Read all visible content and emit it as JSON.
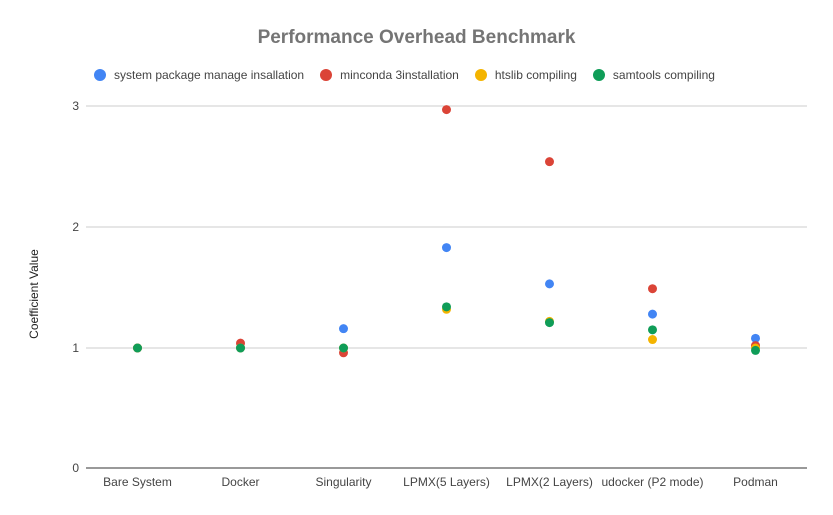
{
  "chart_data": {
    "type": "scatter",
    "title": "Performance Overhead Benchmark",
    "xlabel": "",
    "ylabel": "Coefficient Value",
    "categories": [
      "Bare System",
      "Docker",
      "Singularity",
      "LPMX(5 Layers)",
      "LPMX(2 Layers)",
      "udocker (P2 mode)",
      "Podman"
    ],
    "y_ticks": [
      "0",
      "1",
      "2",
      "3"
    ],
    "ylim": [
      0,
      3.2
    ],
    "y_scale": "nonlinear (0 to 1 compressed)",
    "grid": true,
    "legend_position": "top",
    "series": [
      {
        "name": "system package manage insallation",
        "color": "#4285f4",
        "values": [
          1.0,
          1.0,
          1.16,
          1.83,
          1.53,
          1.28,
          1.08
        ]
      },
      {
        "name": "minconda 3installation",
        "color": "#db4437",
        "values": [
          1.0,
          1.04,
          0.96,
          2.97,
          2.54,
          1.49,
          1.02
        ]
      },
      {
        "name": "htslib compiling",
        "color": "#f4b400",
        "values": [
          1.0,
          1.0,
          1.0,
          1.32,
          1.22,
          1.07,
          1.0
        ]
      },
      {
        "name": "samtools compiling",
        "color": "#0f9d58",
        "values": [
          1.0,
          1.0,
          1.0,
          1.34,
          1.21,
          1.15,
          0.98
        ]
      }
    ]
  }
}
